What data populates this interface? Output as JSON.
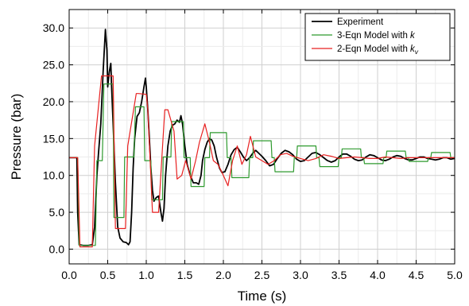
{
  "chart_data": {
    "type": "line",
    "title": "",
    "xlabel": "Time (s)",
    "ylabel": "Pressure (bar)",
    "xlim": [
      0,
      5
    ],
    "ylim": [
      -2,
      32.5
    ],
    "xticks": [
      0,
      0.5,
      1,
      1.5,
      2,
      2.5,
      3,
      3.5,
      4,
      4.5,
      5
    ],
    "xtick_labels": [
      "0.0",
      "0.5",
      "1.0",
      "1.5",
      "2.0",
      "2.5",
      "3.0",
      "3.5",
      "4.0",
      "4.5",
      "5.0"
    ],
    "yticks": [
      0,
      5,
      10,
      15,
      20,
      25,
      30
    ],
    "ytick_labels": [
      "0.0",
      "5.0",
      "10.0",
      "15.0",
      "20.0",
      "25.0",
      "30.0"
    ],
    "grid": true,
    "legend_position": "top-right",
    "series": [
      {
        "name": "Experiment",
        "color": "#000000",
        "x": [
          0,
          0.1,
          0.11,
          0.13,
          0.18,
          0.25,
          0.3,
          0.33,
          0.36,
          0.38,
          0.41,
          0.44,
          0.47,
          0.49,
          0.5,
          0.52,
          0.54,
          0.55,
          0.57,
          0.6,
          0.63,
          0.66,
          0.7,
          0.74,
          0.77,
          0.79,
          0.81,
          0.83,
          0.85,
          0.88,
          0.91,
          0.94,
          0.97,
          0.99,
          1.0,
          1.02,
          1.04,
          1.06,
          1.08,
          1.1,
          1.13,
          1.16,
          1.19,
          1.21,
          1.23,
          1.25,
          1.28,
          1.31,
          1.34,
          1.37,
          1.4,
          1.43,
          1.45,
          1.47,
          1.5,
          1.53,
          1.57,
          1.61,
          1.65,
          1.68,
          1.71,
          1.73,
          1.76,
          1.79,
          1.82,
          1.85,
          1.88,
          1.91,
          1.95,
          1.98,
          2.02,
          2.06,
          2.1,
          2.14,
          2.18,
          2.22,
          2.26,
          2.3,
          2.34,
          2.38,
          2.42,
          2.46,
          2.5,
          2.55,
          2.6,
          2.65,
          2.7,
          2.75,
          2.8,
          2.85,
          2.9,
          2.95,
          3.0,
          3.05,
          3.1,
          3.15,
          3.2,
          3.25,
          3.3,
          3.35,
          3.4,
          3.45,
          3.5,
          3.55,
          3.6,
          3.65,
          3.7,
          3.75,
          3.8,
          3.85,
          3.9,
          3.95,
          4.0,
          4.05,
          4.1,
          4.15,
          4.2,
          4.25,
          4.3,
          4.35,
          4.4,
          4.45,
          4.5,
          4.55,
          4.6,
          4.65,
          4.7,
          4.75,
          4.8,
          4.85,
          4.9,
          4.95,
          5.0
        ],
        "y": [
          12.4,
          12.4,
          5.0,
          0.6,
          0.5,
          0.5,
          0.6,
          3.0,
          10.0,
          13.0,
          17.0,
          24.0,
          29.8,
          27.0,
          22.0,
          24.0,
          25.2,
          22.0,
          17.0,
          9.0,
          3.0,
          1.5,
          1.0,
          0.9,
          0.6,
          1.0,
          5.0,
          11.0,
          15.0,
          18.0,
          18.5,
          20.0,
          22.0,
          23.2,
          22.0,
          19.0,
          15.0,
          11.0,
          8.0,
          6.5,
          7.0,
          7.2,
          5.0,
          3.8,
          5.5,
          10.0,
          14.0,
          16.0,
          16.8,
          17.0,
          17.5,
          17.2,
          18.1,
          17.0,
          14.0,
          11.5,
          10.0,
          9.0,
          9.0,
          8.8,
          10.0,
          12.0,
          13.5,
          14.5,
          15.0,
          14.8,
          14.0,
          12.5,
          11.0,
          10.4,
          10.5,
          11.5,
          12.8,
          13.5,
          13.8,
          13.2,
          12.5,
          12.0,
          12.4,
          13.0,
          13.4,
          13.0,
          12.6,
          12.0,
          11.3,
          11.5,
          12.3,
          13.0,
          13.4,
          13.2,
          12.8,
          12.2,
          11.9,
          12.0,
          12.5,
          13.0,
          13.1,
          12.8,
          12.4,
          12.0,
          11.8,
          12.0,
          12.5,
          12.9,
          12.9,
          12.6,
          12.2,
          12.0,
          12.1,
          12.5,
          12.8,
          12.7,
          12.4,
          12.1,
          12.0,
          12.2,
          12.5,
          12.7,
          12.6,
          12.3,
          12.1,
          12.1,
          12.3,
          12.5,
          12.5,
          12.3,
          12.2,
          12.1,
          12.2,
          12.4,
          12.4,
          12.2,
          12.3
        ]
      },
      {
        "name": "3-Eqn Model with k",
        "color": "#2e9a2e",
        "x": [
          0,
          0.11,
          0.13,
          0.34,
          0.36,
          0.43,
          0.45,
          0.57,
          0.58,
          0.71,
          0.72,
          0.84,
          0.86,
          0.97,
          0.98,
          1.06,
          1.07,
          1.21,
          1.22,
          1.32,
          1.33,
          1.48,
          1.49,
          1.57,
          1.58,
          1.75,
          1.76,
          1.82,
          1.83,
          2.04,
          2.05,
          2.1,
          2.11,
          2.33,
          2.34,
          2.38,
          2.39,
          2.62,
          2.63,
          2.66,
          2.67,
          2.91,
          2.92,
          2.95,
          2.96,
          3.2,
          3.21,
          3.24,
          3.25,
          3.49,
          3.5,
          3.53,
          3.54,
          3.78,
          3.79,
          3.82,
          3.83,
          4.07,
          4.08,
          4.11,
          4.12,
          4.36,
          4.37,
          4.4,
          4.41,
          4.65,
          4.66,
          4.69,
          4.7,
          4.94,
          4.95,
          5.0
        ],
        "y": [
          12.4,
          12.4,
          0.5,
          0.5,
          12.0,
          12.0,
          22.4,
          22.4,
          4.3,
          4.3,
          12.5,
          12.5,
          19.3,
          19.3,
          12.0,
          12.0,
          6.7,
          6.7,
          12.5,
          12.5,
          17.3,
          17.3,
          12.4,
          12.4,
          8.5,
          8.5,
          12.4,
          12.4,
          15.8,
          15.8,
          12.4,
          12.4,
          9.7,
          9.7,
          12.4,
          12.4,
          14.7,
          14.7,
          12.4,
          12.4,
          10.5,
          10.5,
          12.4,
          12.4,
          14.0,
          14.0,
          12.4,
          12.4,
          11.2,
          11.2,
          12.4,
          12.4,
          13.6,
          13.6,
          12.4,
          12.4,
          11.6,
          11.6,
          12.4,
          12.4,
          13.3,
          13.3,
          12.4,
          12.4,
          11.9,
          11.9,
          12.4,
          12.4,
          13.1,
          13.1,
          12.4,
          12.4
        ]
      },
      {
        "name": "2-Eqn Model with kv",
        "color": "#e82020",
        "x": [
          0,
          0.11,
          0.14,
          0.3,
          0.33,
          0.42,
          0.45,
          0.57,
          0.6,
          0.73,
          0.76,
          0.87,
          0.9,
          1.0,
          1.02,
          1.05,
          1.08,
          1.16,
          1.2,
          1.24,
          1.28,
          1.36,
          1.4,
          1.46,
          1.51,
          1.54,
          1.58,
          1.64,
          1.69,
          1.76,
          1.82,
          1.87,
          1.93,
          2.0,
          2.06,
          2.12,
          2.18,
          2.24,
          2.3,
          2.35,
          2.42,
          2.5,
          2.58,
          2.66,
          2.74,
          2.82,
          2.9,
          3.0,
          3.1,
          3.2,
          3.3,
          3.4,
          3.5,
          3.6,
          3.7,
          3.8,
          3.9,
          4.0,
          4.1,
          4.2,
          4.3,
          4.4,
          4.5,
          4.6,
          4.7,
          4.8,
          4.9,
          5.0
        ],
        "y": [
          12.4,
          12.4,
          0.3,
          0.3,
          14.0,
          23.5,
          23.5,
          23.5,
          2.8,
          2.8,
          14.0,
          21.1,
          21.1,
          21.0,
          19.0,
          12.0,
          5.0,
          5.0,
          12.0,
          18.9,
          18.9,
          16.0,
          9.5,
          10.0,
          12.0,
          11.0,
          9.5,
          12.0,
          14.5,
          17.0,
          14.5,
          12.0,
          11.5,
          10.0,
          8.6,
          12.0,
          14.0,
          11.5,
          12.8,
          15.3,
          12.5,
          12.0,
          11.5,
          12.0,
          12.8,
          13.0,
          12.6,
          12.3,
          12.0,
          12.3,
          12.8,
          12.6,
          12.3,
          12.4,
          12.5,
          12.4,
          12.3,
          12.3,
          12.5,
          12.4,
          12.3,
          12.4,
          12.4,
          12.4,
          12.4,
          12.4,
          12.4,
          12.4
        ]
      }
    ],
    "legend": [
      {
        "prefix": "Experiment",
        "italic": "",
        "sub": ""
      },
      {
        "prefix": "3-Eqn Model with ",
        "italic": "k",
        "sub": ""
      },
      {
        "prefix": "2-Eqn Model with ",
        "italic": "k",
        "sub": "v"
      }
    ]
  }
}
